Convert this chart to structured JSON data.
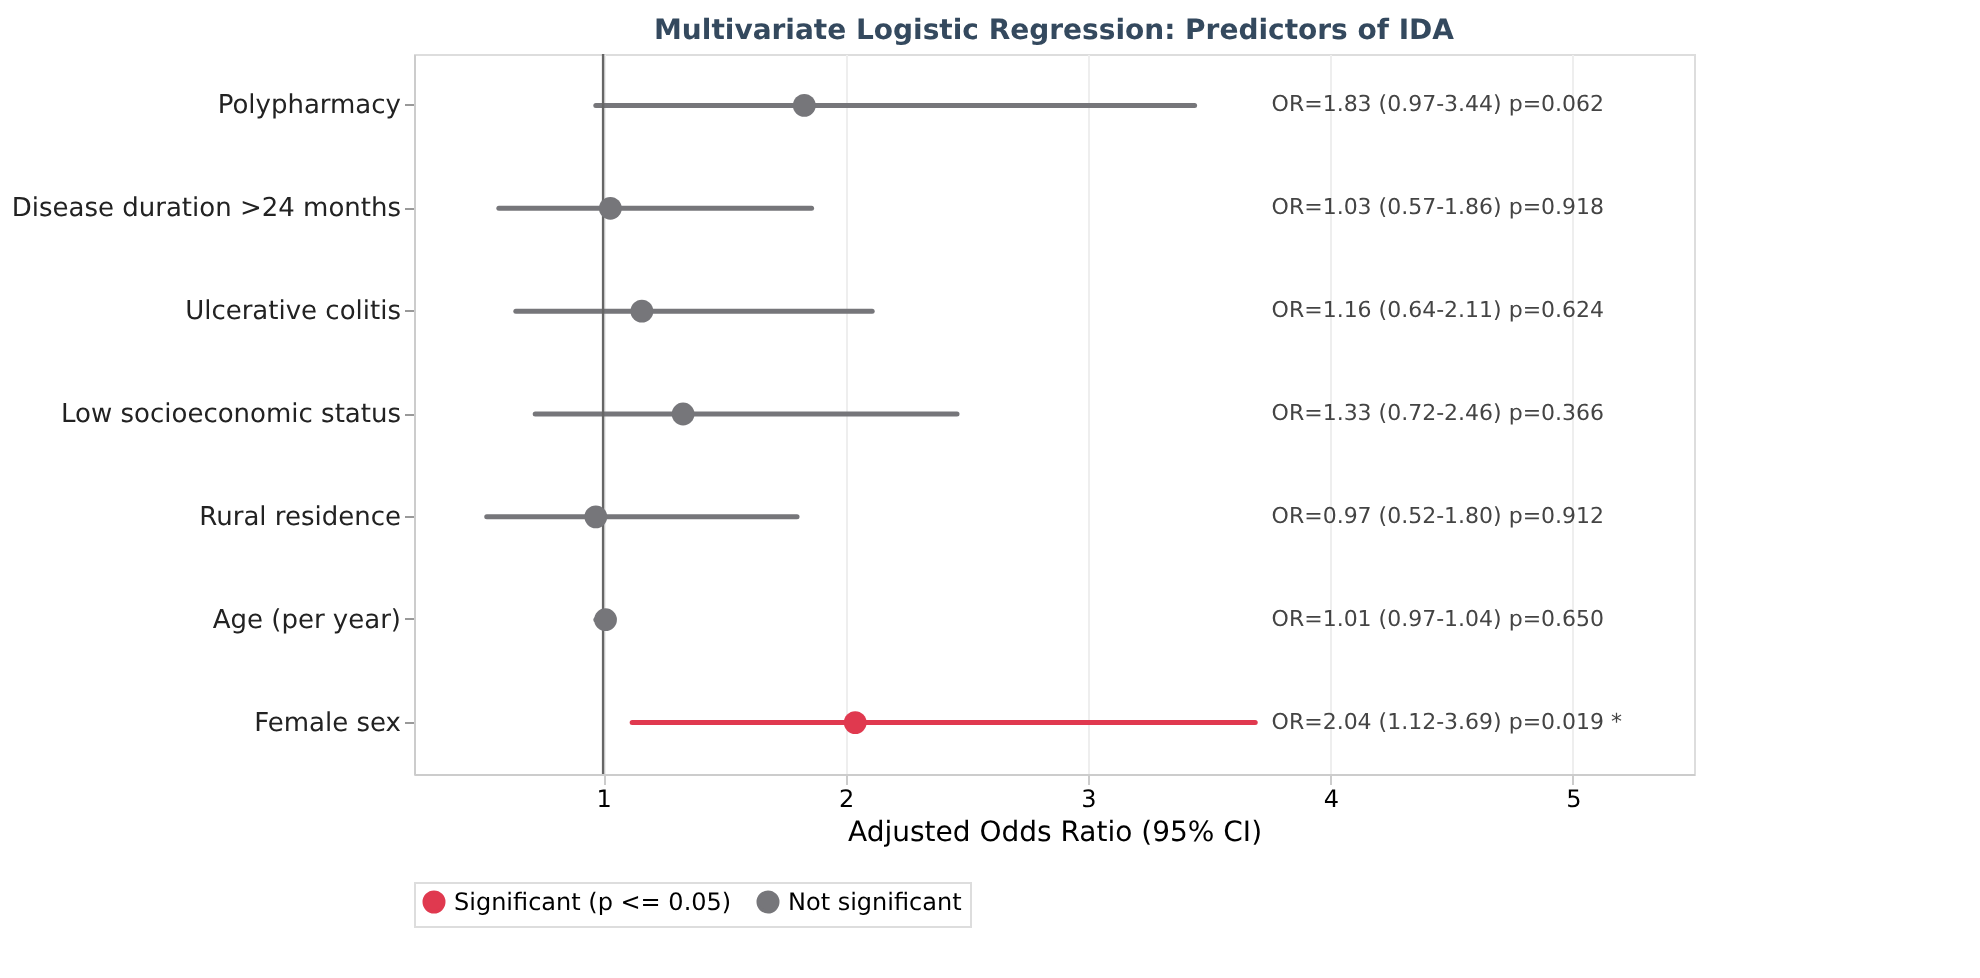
{
  "chart_data": {
    "type": "scatter",
    "orientation": "horizontal",
    "title": "Multivariate Logistic Regression: Predictors of IDA",
    "xlabel": "Adjusted Odds Ratio (95% CI)",
    "categories": [
      "Polypharmacy",
      "Disease duration >24 months",
      "Ulcerative colitis",
      "Low socioeconomic status",
      "Rural residence",
      "Age (per year)",
      "Female sex"
    ],
    "series": [
      {
        "name": "Significant (p <= 0.05)",
        "color": "#e0394f",
        "values": [
          null,
          null,
          null,
          null,
          null,
          null,
          2.04
        ],
        "errors": [
          null,
          null,
          null,
          null,
          null,
          null,
          [
            1.12,
            3.69
          ]
        ]
      },
      {
        "name": "Not significant",
        "color": "#76767a",
        "values": [
          1.83,
          1.03,
          1.16,
          1.33,
          0.97,
          1.01,
          null
        ],
        "errors": [
          [
            0.97,
            3.44
          ],
          [
            0.57,
            1.86
          ],
          [
            0.64,
            2.11
          ],
          [
            0.72,
            2.46
          ],
          [
            0.52,
            1.8
          ],
          [
            0.97,
            1.04
          ],
          null
        ]
      }
    ],
    "annotations": [
      "OR=1.83 (0.97-3.44) p=0.062",
      "OR=1.03 (0.57-1.86) p=0.918",
      "OR=1.16 (0.64-2.11) p=0.624",
      "OR=1.33 (0.72-2.46) p=0.366",
      "OR=0.97 (0.52-1.80) p=0.912",
      "OR=1.01 (0.97-1.04) p=0.650",
      "OR=2.04 (1.12-3.69) p=0.019 *"
    ],
    "xlim": [
      0.22,
      5.5
    ],
    "xticks": [
      1,
      2,
      3,
      4,
      5
    ],
    "ref_lines": [
      {
        "axis": "x",
        "value": 1,
        "color": "#666666"
      }
    ],
    "grid": "x",
    "legend": "bottom",
    "marker": "circle"
  }
}
